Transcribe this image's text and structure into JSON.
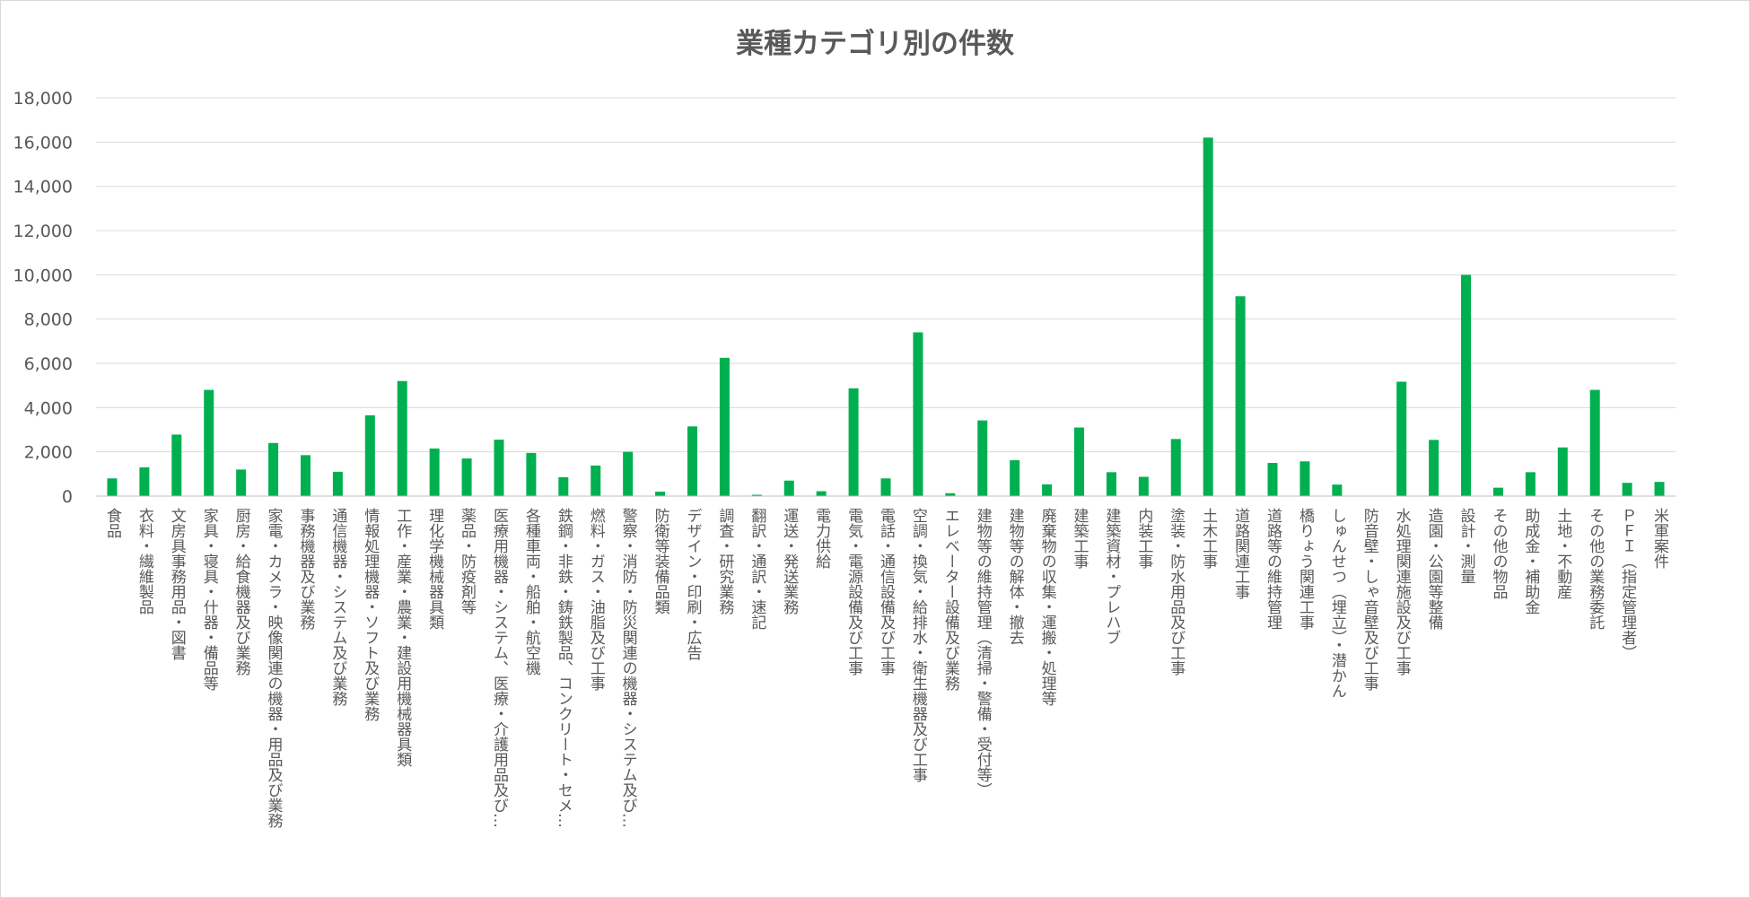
{
  "chart_data": {
    "type": "bar",
    "title": "業種カテゴリ別の件数",
    "xlabel": "",
    "ylabel": "",
    "ylim": [
      0,
      18000
    ],
    "ytick_step": 2000,
    "grid": true,
    "legend": "none",
    "bar_color": "#00b050",
    "categories": [
      "食品",
      "衣料・繊維製品",
      "文房具事務用品・図書",
      "家具・寝具・什器・備品等",
      "厨房・給食機器及び業務",
      "家電・カメラ・映像関連の機器・用品及び業務",
      "事務機器及び業務",
      "通信機器・システム及び業務",
      "情報処理機器・ソフト及び業務",
      "工作・産業・農業・建設用機械器具類",
      "理化学機械器具類",
      "薬品・防疫剤等",
      "医療用機器・システム、医療・介護用品及び…",
      "各種車両・船舶・航空機",
      "鉄鋼・非鉄・鋳鉄製品、コンクリート・セメ…",
      "燃料・ガス・油脂及び工事",
      "警察・消防・防災関連の機器・システム及び…",
      "防衛等装備品類",
      "デザイン・印刷・広告",
      "調査・研究業務",
      "翻訳・通訳・速記",
      "運送・発送業務",
      "電力供給",
      "電気・電源設備及び工事",
      "電話・通信設備及び工事",
      "空調・換気・給排水・衛生機器及び工事",
      "エレベーター設備及び業務",
      "建物等の維持管理（清掃・警備・受付等）",
      "建物等の解体・撤去",
      "廃棄物の収集・運搬・処理等",
      "建築工事",
      "建築資材・プレハブ",
      "内装工事",
      "塗装・防水用品及び工事",
      "土木工事",
      "道路関連工事",
      "道路等の維持管理",
      "橋りょう関連工事",
      "しゅんせつ（埋立）・潜かん",
      "防音壁・しゃ音壁及び工事",
      "水処理関連施設及び工事",
      "造園・公園等整備",
      "設計・測量",
      "その他の物品",
      "助成金・補助金",
      "土地・不動産",
      "その他の業務委託",
      "ＰＦＩ（指定管理者）",
      "米軍案件"
    ],
    "values": [
      800,
      1300,
      2780,
      4800,
      1200,
      2400,
      1850,
      1100,
      3650,
      5200,
      2150,
      1700,
      2550,
      1950,
      850,
      1380,
      2000,
      200,
      3150,
      6250,
      60,
      700,
      220,
      4870,
      800,
      7400,
      130,
      3420,
      1620,
      530,
      3100,
      1080,
      870,
      2580,
      16200,
      9030,
      1500,
      1570,
      520,
      20,
      5170,
      2540,
      10000,
      380,
      1080,
      2200,
      4800,
      600,
      640
    ]
  }
}
